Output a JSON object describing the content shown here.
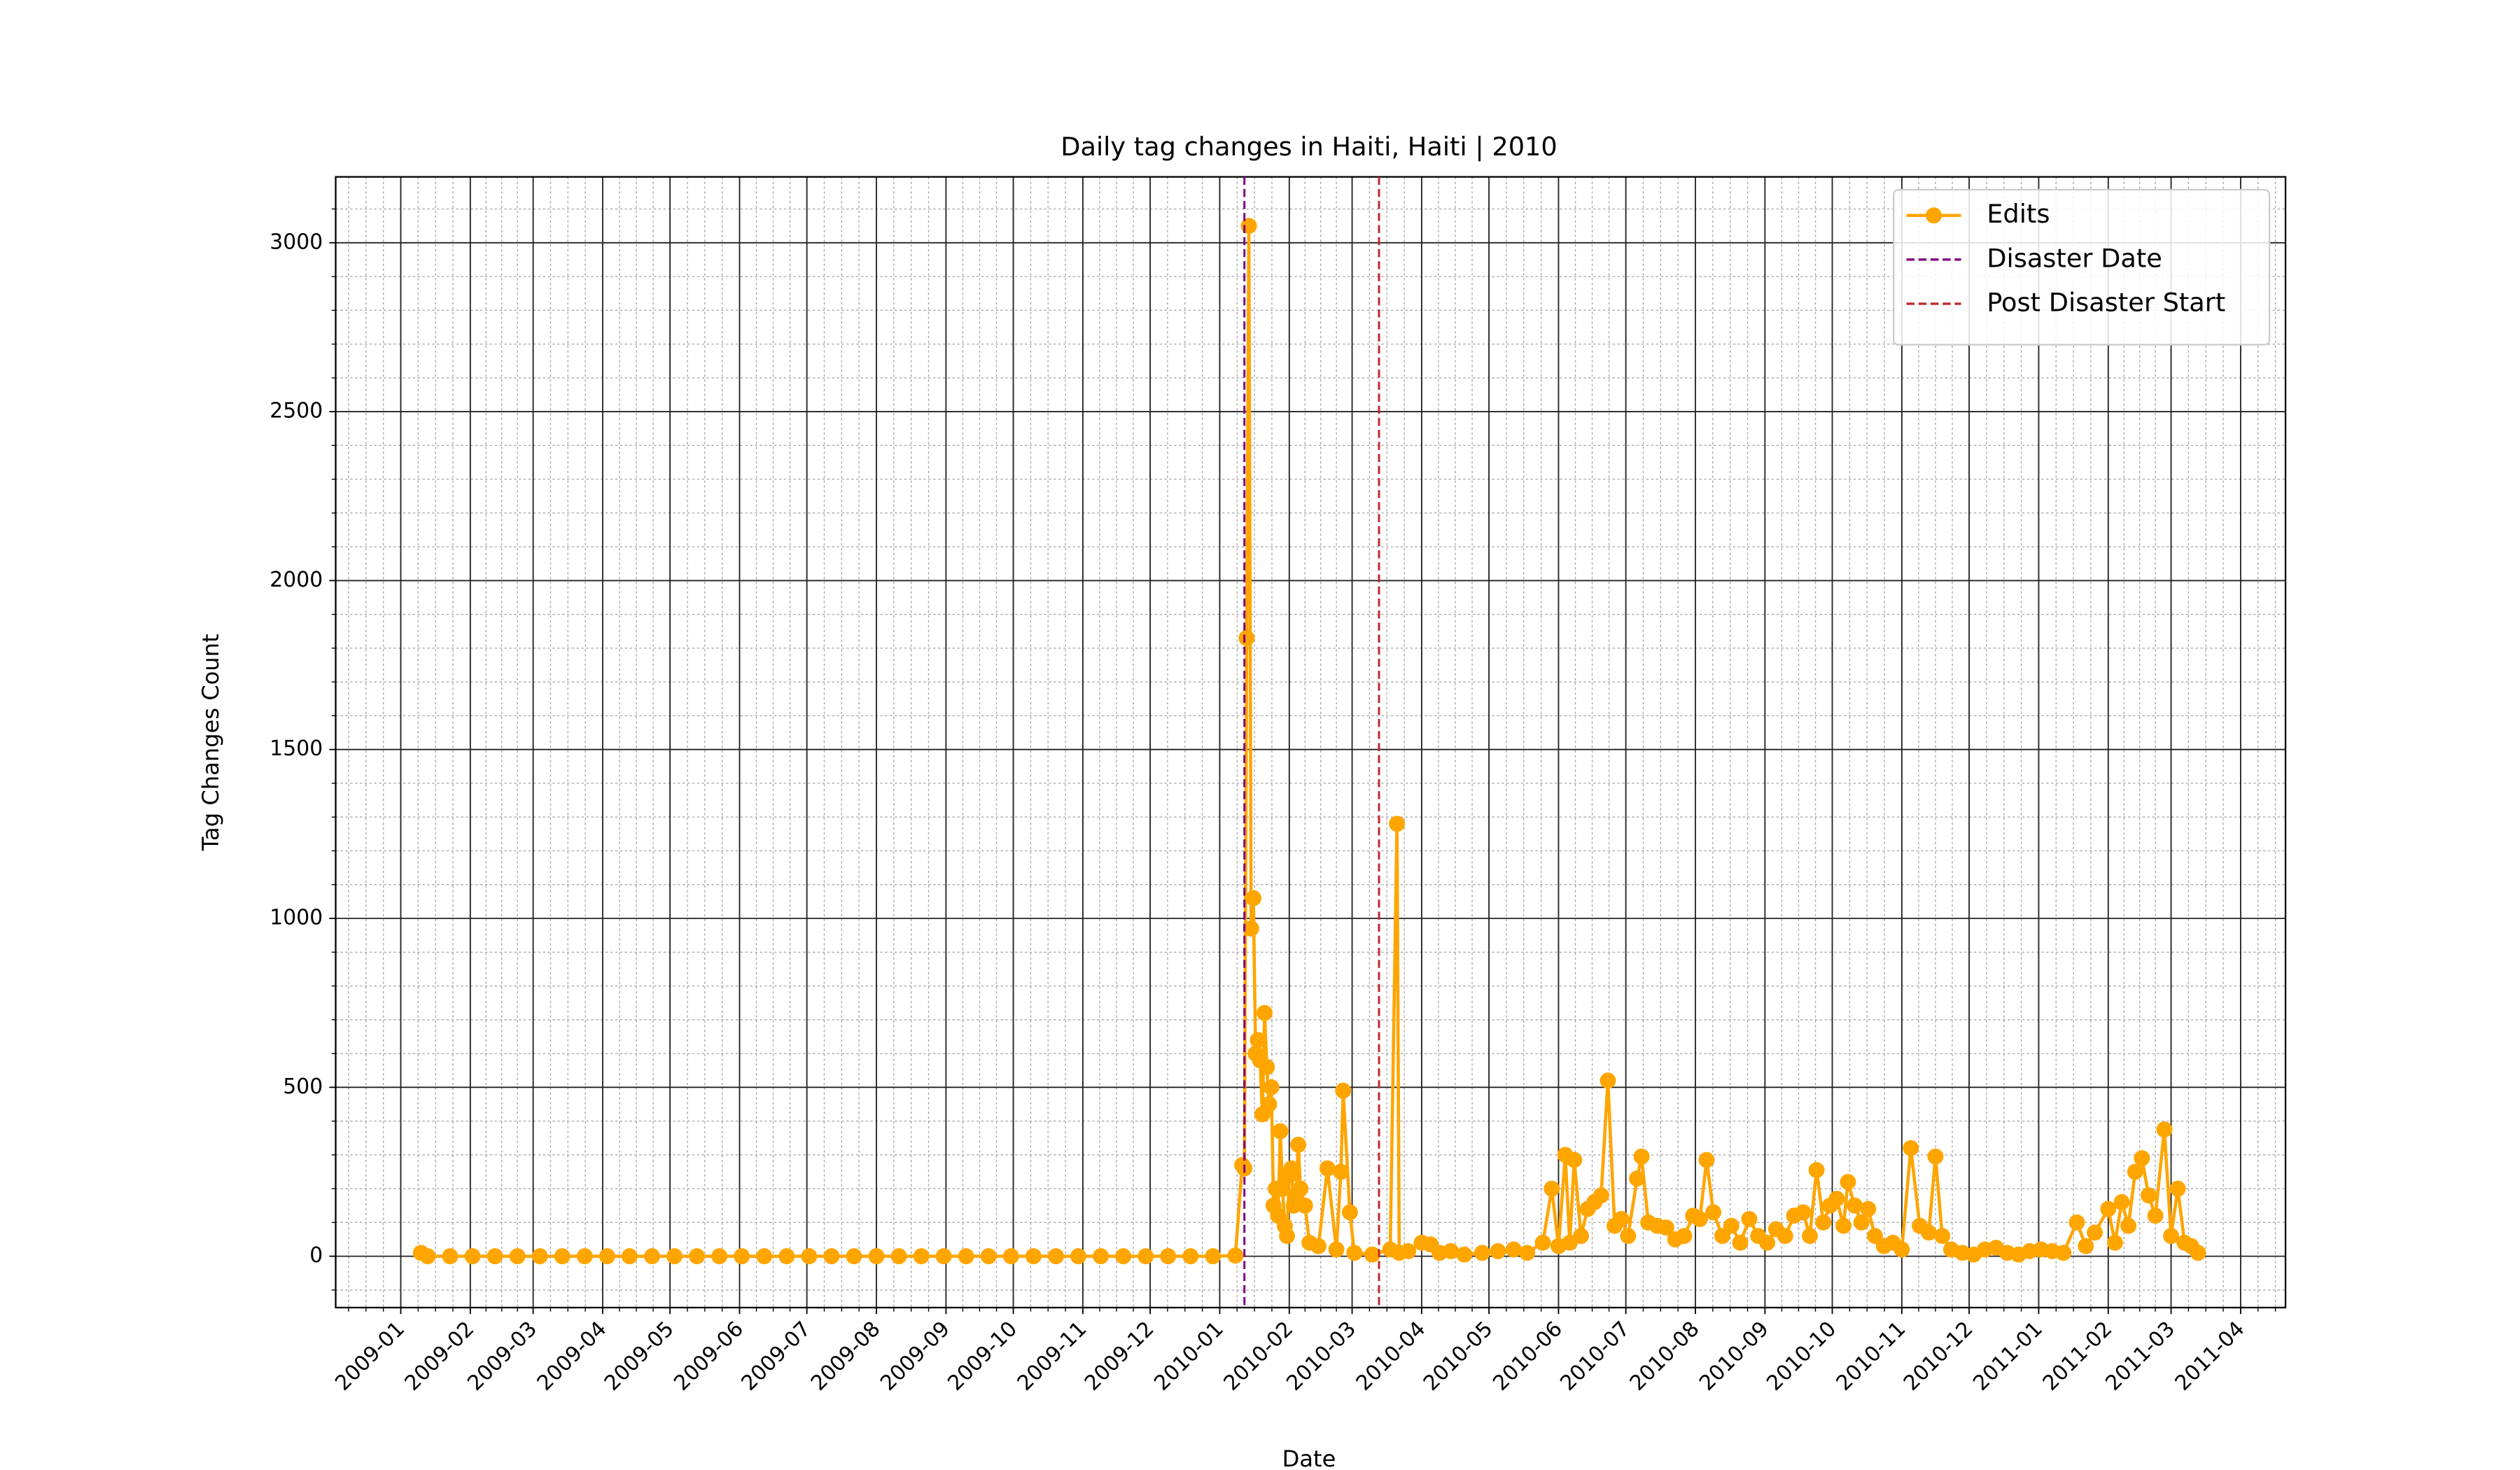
{
  "chart_data": {
    "type": "line",
    "title": "Daily tag changes in Haiti, Haiti | 2010",
    "x_label": "Date",
    "y_label": "Tag Changes Count",
    "x": [
      "2009-01-10",
      "2009-01-13",
      "2009-01-23",
      "2009-02-02",
      "2009-02-12",
      "2009-02-22",
      "2009-03-04",
      "2009-03-14",
      "2009-03-24",
      "2009-04-03",
      "2009-04-13",
      "2009-04-23",
      "2009-05-03",
      "2009-05-13",
      "2009-05-23",
      "2009-06-02",
      "2009-06-12",
      "2009-06-22",
      "2009-07-02",
      "2009-07-12",
      "2009-07-22",
      "2009-08-01",
      "2009-08-11",
      "2009-08-21",
      "2009-08-31",
      "2009-09-10",
      "2009-09-20",
      "2009-09-30",
      "2009-10-10",
      "2009-10-20",
      "2009-10-30",
      "2009-11-09",
      "2009-11-19",
      "2009-11-29",
      "2009-12-09",
      "2009-12-19",
      "2009-12-29",
      "2010-01-08",
      "2010-01-11",
      "2010-01-12",
      "2010-01-13",
      "2010-01-14",
      "2010-01-15",
      "2010-01-16",
      "2010-01-17",
      "2010-01-18",
      "2010-01-19",
      "2010-01-20",
      "2010-01-21",
      "2010-01-22",
      "2010-01-23",
      "2010-01-24",
      "2010-01-25",
      "2010-01-26",
      "2010-01-27",
      "2010-01-28",
      "2010-01-29",
      "2010-01-30",
      "2010-01-31",
      "2010-02-01",
      "2010-02-02",
      "2010-02-03",
      "2010-02-04",
      "2010-02-05",
      "2010-02-06",
      "2010-02-08",
      "2010-02-10",
      "2010-02-14",
      "2010-02-18",
      "2010-02-22",
      "2010-02-24",
      "2010-02-25",
      "2010-02-28",
      "2010-03-02",
      "2010-03-10",
      "2010-03-18",
      "2010-03-21",
      "2010-03-22",
      "2010-03-26",
      "2010-04-01",
      "2010-04-05",
      "2010-04-09",
      "2010-04-14",
      "2010-04-20",
      "2010-04-28",
      "2010-05-05",
      "2010-05-12",
      "2010-05-18",
      "2010-05-25",
      "2010-05-29",
      "2010-06-01",
      "2010-06-04",
      "2010-06-06",
      "2010-06-08",
      "2010-06-11",
      "2010-06-14",
      "2010-06-17",
      "2010-06-20",
      "2010-06-23",
      "2010-06-26",
      "2010-06-29",
      "2010-07-02",
      "2010-07-06",
      "2010-07-08",
      "2010-07-11",
      "2010-07-15",
      "2010-07-19",
      "2010-07-23",
      "2010-07-27",
      "2010-07-31",
      "2010-08-03",
      "2010-08-06",
      "2010-08-09",
      "2010-08-13",
      "2010-08-17",
      "2010-08-21",
      "2010-08-25",
      "2010-08-29",
      "2010-09-02",
      "2010-09-06",
      "2010-09-10",
      "2010-09-14",
      "2010-09-18",
      "2010-09-21",
      "2010-09-24",
      "2010-09-27",
      "2010-09-30",
      "2010-10-03",
      "2010-10-06",
      "2010-10-08",
      "2010-10-11",
      "2010-10-14",
      "2010-10-17",
      "2010-10-20",
      "2010-10-24",
      "2010-10-28",
      "2010-11-01",
      "2010-11-05",
      "2010-11-09",
      "2010-11-13",
      "2010-11-16",
      "2010-11-19",
      "2010-11-23",
      "2010-11-28",
      "2010-12-03",
      "2010-12-08",
      "2010-12-13",
      "2010-12-18",
      "2010-12-23",
      "2010-12-28",
      "2011-01-02",
      "2011-01-07",
      "2011-01-12",
      "2011-01-18",
      "2011-01-22",
      "2011-01-26",
      "2011-02-01",
      "2011-02-04",
      "2011-02-07",
      "2011-02-10",
      "2011-02-13",
      "2011-02-16",
      "2011-02-19",
      "2011-02-22",
      "2011-02-26",
      "2011-03-01",
      "2011-03-04",
      "2011-03-07",
      "2011-03-10",
      "2011-03-13"
    ],
    "series": [
      {
        "name": "Edits",
        "color": "#ffa500",
        "values": [
          10,
          0,
          0,
          0,
          0,
          0,
          0,
          0,
          0,
          0,
          0,
          0,
          0,
          0,
          0,
          0,
          0,
          0,
          0,
          0,
          0,
          0,
          0,
          0,
          0,
          0,
          0,
          0,
          0,
          0,
          0,
          0,
          0,
          0,
          0,
          0,
          0,
          2,
          270,
          260,
          1830,
          3050,
          970,
          1060,
          600,
          640,
          580,
          420,
          720,
          560,
          450,
          500,
          150,
          200,
          120,
          370,
          200,
          90,
          60,
          240,
          260,
          150,
          180,
          330,
          200,
          150,
          40,
          30,
          260,
          20,
          250,
          490,
          130,
          10,
          5,
          20,
          1280,
          10,
          15,
          40,
          35,
          10,
          15,
          5,
          10,
          15,
          20,
          10,
          40,
          200,
          30,
          300,
          40,
          285,
          60,
          140,
          160,
          180,
          520,
          90,
          110,
          60,
          230,
          295,
          100,
          90,
          85,
          50,
          60,
          120,
          110,
          285,
          130,
          60,
          90,
          40,
          110,
          60,
          40,
          80,
          60,
          120,
          130,
          60,
          255,
          100,
          150,
          170,
          90,
          220,
          150,
          100,
          140,
          60,
          30,
          40,
          20,
          320,
          90,
          70,
          295,
          60,
          20,
          10,
          5,
          20,
          25,
          10,
          5,
          15,
          20,
          15,
          10,
          100,
          30,
          70,
          140,
          40,
          160,
          90,
          250,
          290,
          180,
          120,
          375,
          60,
          200,
          40,
          30,
          10
        ]
      }
    ],
    "vlines": [
      {
        "name": "Disaster Date",
        "x": "2010-01-12",
        "color": "#800080"
      },
      {
        "name": "Post Disaster Start",
        "x": "2010-03-13",
        "color": "#c0282d"
      }
    ],
    "xlim": [
      "2008-12-03",
      "2011-04-21"
    ],
    "xticks": [
      "2009-01",
      "2009-02",
      "2009-03",
      "2009-04",
      "2009-05",
      "2009-06",
      "2009-07",
      "2009-08",
      "2009-09",
      "2009-10",
      "2009-11",
      "2009-12",
      "2010-01",
      "2010-02",
      "2010-03",
      "2010-04",
      "2010-05",
      "2010-06",
      "2010-07",
      "2010-08",
      "2010-09",
      "2010-10",
      "2010-11",
      "2010-12",
      "2011-01",
      "2011-02",
      "2011-03",
      "2011-04"
    ],
    "ylim": [
      -152,
      3195
    ],
    "yticks": [
      0,
      500,
      1000,
      1500,
      2000,
      2500,
      3000
    ],
    "grid": true,
    "minor_grid": true,
    "legend": "upper right"
  }
}
